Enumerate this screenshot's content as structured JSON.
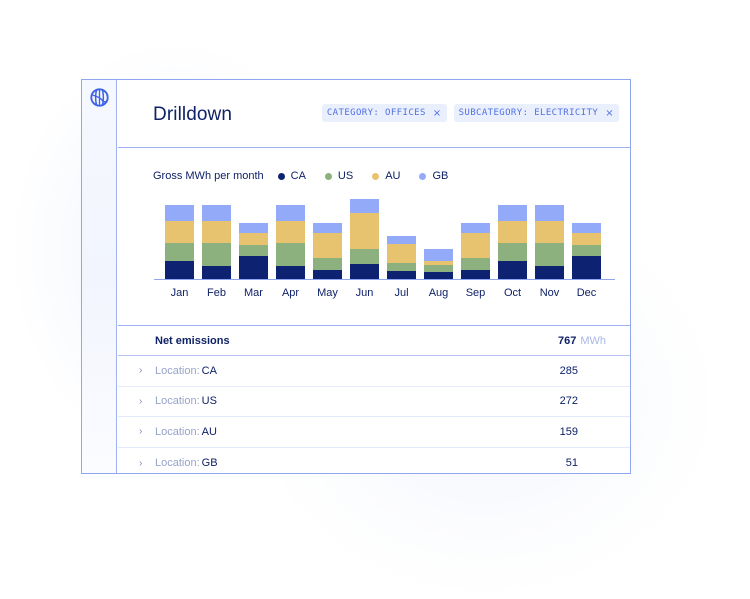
{
  "header": {
    "title": "Drilldown",
    "filters": [
      {
        "label": "CATEGORY: OFFICES",
        "remove_icon": "close-icon"
      },
      {
        "label": "SUBCATEGORY: ELECTRICITY",
        "remove_icon": "close-icon"
      }
    ]
  },
  "sidebar": {
    "icon": "globe-icon"
  },
  "chart": {
    "title": "Gross MWh per month",
    "legend": [
      {
        "name": "CA",
        "color": "#0d2270"
      },
      {
        "name": "US",
        "color": "#8db17e"
      },
      {
        "name": "AU",
        "color": "#e8c36f"
      },
      {
        "name": "GB",
        "color": "#93aaf9"
      }
    ]
  },
  "chart_data": {
    "type": "bar",
    "stacked": true,
    "title": "Gross MWh per month",
    "xlabel": "",
    "ylabel": "",
    "grid": false,
    "legend_position": "top-left-inline",
    "categories": [
      "Jan",
      "Feb",
      "Mar",
      "Apr",
      "May",
      "Jun",
      "Jul",
      "Aug",
      "Sep",
      "Oct",
      "Nov",
      "Dec"
    ],
    "series": [
      {
        "name": "CA",
        "color": "#0d2270",
        "values": [
          18,
          13,
          23,
          13,
          9,
          15,
          8,
          7,
          9,
          18,
          13,
          23
        ]
      },
      {
        "name": "US",
        "color": "#8db17e",
        "values": [
          18,
          23,
          11,
          23,
          12,
          15,
          8,
          7,
          12,
          18,
          23,
          11
        ]
      },
      {
        "name": "AU",
        "color": "#e8c36f",
        "values": [
          22,
          22,
          12,
          22,
          25,
          36,
          19,
          4,
          25,
          22,
          22,
          12
        ]
      },
      {
        "name": "GB",
        "color": "#93aaf9",
        "values": [
          16,
          16,
          10,
          16,
          10,
          14,
          8,
          12,
          10,
          16,
          16,
          10
        ]
      }
    ]
  },
  "table": {
    "total": {
      "label": "Net emissions",
      "value": "767",
      "unit": "MWh"
    },
    "rows": [
      {
        "key": "Location:",
        "value": "CA",
        "amount": "285"
      },
      {
        "key": "Location:",
        "value": "US",
        "amount": "272"
      },
      {
        "key": "Location:",
        "value": "AU",
        "amount": "159"
      },
      {
        "key": "Location:",
        "value": "GB",
        "amount": "51"
      }
    ]
  }
}
